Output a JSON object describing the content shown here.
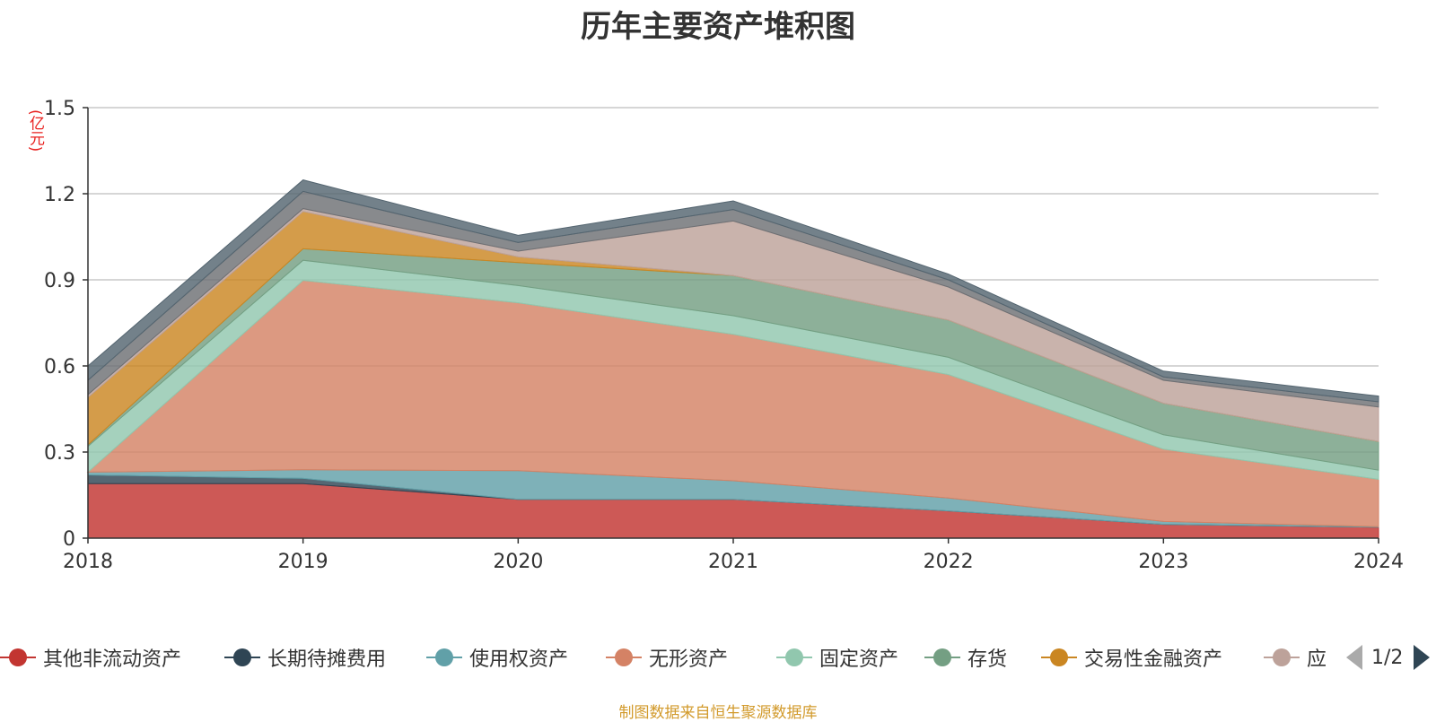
{
  "unit_label": "(亿元)",
  "source_note": "制图数据来自恒生聚源数据库",
  "pager": {
    "text": "1/2"
  },
  "chart_data": {
    "type": "area",
    "stacked": true,
    "title": "历年主要资产堆积图",
    "ylabel": "(亿元)",
    "categories": [
      "2018",
      "2019",
      "2020",
      "2021",
      "2022",
      "2023",
      "2024"
    ],
    "ylim": [
      0,
      1.5
    ],
    "yticks": [
      "0",
      "0.3",
      "0.6",
      "0.9",
      "1.2",
      "1.5"
    ],
    "grid": true,
    "legend_position": "bottom",
    "series": [
      {
        "name": "其他非流动资产",
        "color": "#c23531",
        "values": [
          0.19,
          0.19,
          0.135,
          0.135,
          0.095,
          0.048,
          0.038
        ]
      },
      {
        "name": "长期待摊费用",
        "color": "#2f4554",
        "values": [
          0.03,
          0.018,
          0.0,
          0.0,
          0.0,
          0.0,
          0.0
        ]
      },
      {
        "name": "使用权资产",
        "color": "#61a0a8",
        "values": [
          0.01,
          0.03,
          0.1,
          0.065,
          0.045,
          0.01,
          0.002
        ]
      },
      {
        "name": "无形资产",
        "color": "#d48265",
        "values": [
          0.0,
          0.66,
          0.585,
          0.51,
          0.43,
          0.252,
          0.165
        ]
      },
      {
        "name": "固定资产",
        "color": "#91c7ae",
        "values": [
          0.09,
          0.07,
          0.06,
          0.065,
          0.06,
          0.05,
          0.032
        ]
      },
      {
        "name": "存货",
        "color": "#749f83",
        "values": [
          0.005,
          0.04,
          0.08,
          0.14,
          0.13,
          0.11,
          0.1
        ]
      },
      {
        "name": "交易性金融资产",
        "color": "#ca8622",
        "values": [
          0.165,
          0.13,
          0.02,
          0.0,
          0.0,
          0.0,
          0.0
        ]
      },
      {
        "name": "应",
        "color": "#bda29a",
        "values": [
          0.01,
          0.01,
          0.02,
          0.19,
          0.115,
          0.08,
          0.12
        ]
      },
      {
        "name": "",
        "color": "#6e7074",
        "values": [
          0.05,
          0.06,
          0.03,
          0.04,
          0.025,
          0.012,
          0.018
        ]
      },
      {
        "name": "",
        "color": "#546570",
        "values": [
          0.05,
          0.04,
          0.025,
          0.03,
          0.02,
          0.02,
          0.02
        ]
      }
    ]
  }
}
